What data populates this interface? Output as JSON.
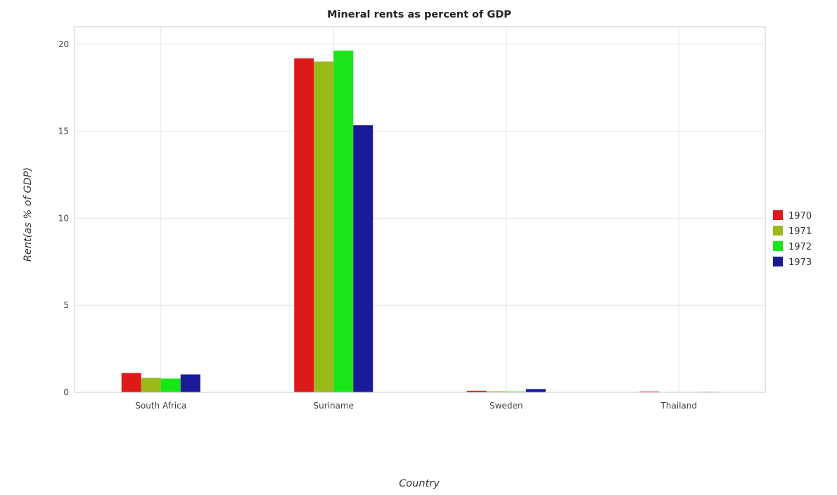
{
  "chart_data": {
    "type": "bar",
    "title": "Mineral rents as percent of GDP",
    "xlabel": "Country",
    "ylabel": "Rent(as % of GDP)",
    "categories": [
      "South Africa",
      "Suriname",
      "Sweden",
      "Thailand"
    ],
    "series": [
      {
        "name": "1970",
        "color": "#dd1a1a",
        "values": [
          1.11,
          19.18,
          0.09,
          0.05
        ]
      },
      {
        "name": "1971",
        "color": "#9aba1a",
        "values": [
          0.83,
          19.0,
          0.06,
          0.0
        ]
      },
      {
        "name": "1972",
        "color": "#19e619",
        "values": [
          0.79,
          19.63,
          0.05,
          0.0
        ]
      },
      {
        "name": "1973",
        "color": "#1a1a99",
        "values": [
          1.03,
          15.34,
          0.19,
          0.03
        ]
      }
    ],
    "yticks": [
      0,
      5,
      10,
      15,
      20
    ],
    "ytick_labels": [
      "0",
      "5",
      "10",
      "15",
      "20"
    ],
    "ylim": [
      0,
      21
    ],
    "grid": true,
    "legend_position": "right"
  }
}
